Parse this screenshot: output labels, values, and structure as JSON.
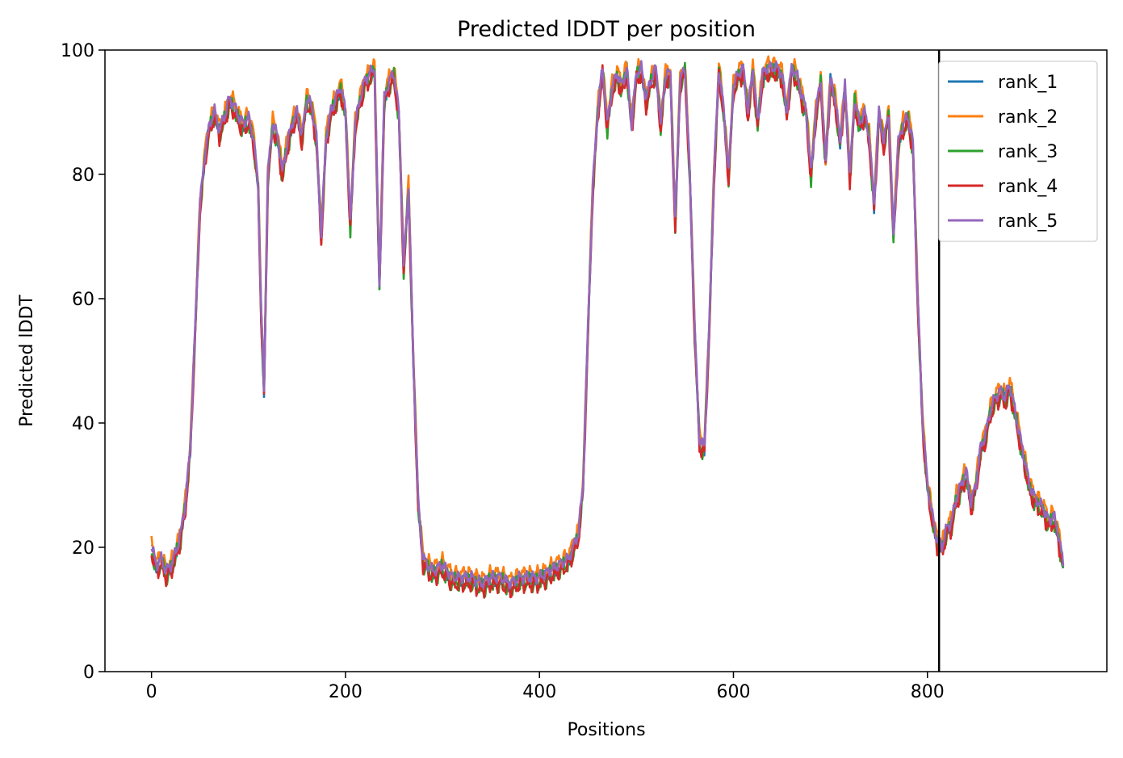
{
  "chart_data": {
    "type": "line",
    "title": "Predicted lDDT per position",
    "xlabel": "Positions",
    "ylabel": "Predicted lDDT",
    "xlim": [
      -48,
      985
    ],
    "ylim": [
      0,
      100
    ],
    "xticks": [
      0,
      200,
      400,
      600,
      800
    ],
    "yticks": [
      0,
      20,
      40,
      60,
      80,
      100
    ],
    "vline_x": 812,
    "grid": false,
    "legend_position": "upper right",
    "base": {
      "x": [
        0,
        5,
        10,
        15,
        20,
        25,
        30,
        35,
        40,
        45,
        50,
        55,
        60,
        65,
        70,
        75,
        80,
        85,
        90,
        95,
        100,
        105,
        110,
        113,
        116,
        120,
        125,
        130,
        135,
        140,
        145,
        150,
        155,
        160,
        165,
        170,
        175,
        180,
        185,
        190,
        195,
        200,
        205,
        210,
        215,
        220,
        225,
        230,
        235,
        240,
        245,
        250,
        255,
        260,
        265,
        270,
        275,
        280,
        290,
        300,
        310,
        320,
        330,
        340,
        350,
        360,
        370,
        380,
        390,
        400,
        410,
        420,
        430,
        440,
        445,
        450,
        455,
        460,
        465,
        470,
        475,
        480,
        485,
        490,
        495,
        500,
        505,
        510,
        515,
        520,
        525,
        530,
        535,
        540,
        545,
        550,
        555,
        560,
        565,
        570,
        575,
        580,
        585,
        590,
        595,
        600,
        605,
        610,
        615,
        620,
        625,
        630,
        635,
        640,
        645,
        650,
        655,
        660,
        665,
        670,
        675,
        680,
        685,
        690,
        695,
        700,
        705,
        710,
        715,
        720,
        725,
        730,
        735,
        740,
        745,
        750,
        755,
        760,
        765,
        770,
        775,
        780,
        785,
        790,
        795,
        800,
        805,
        810,
        815,
        820,
        825,
        830,
        835,
        840,
        845,
        850,
        855,
        860,
        865,
        870,
        875,
        880,
        885,
        890,
        895,
        900,
        905,
        910,
        915,
        920,
        925,
        930,
        935,
        940
      ],
      "y": [
        20,
        17,
        18,
        16,
        17,
        19,
        22,
        27,
        36,
        55,
        75,
        83,
        88,
        90,
        87,
        89,
        92,
        91,
        89,
        88,
        89,
        86,
        78,
        58,
        45,
        80,
        88,
        86,
        80,
        85,
        88,
        90,
        86,
        92,
        91,
        86,
        70,
        86,
        90,
        92,
        94,
        90,
        72,
        88,
        92,
        95,
        96,
        97,
        62,
        92,
        95,
        96,
        90,
        65,
        78,
        50,
        27,
        18,
        16,
        17,
        15,
        15,
        15,
        14,
        15,
        15,
        14,
        15,
        15,
        15,
        16,
        17,
        18,
        22,
        30,
        55,
        78,
        90,
        97,
        88,
        94,
        96,
        94,
        97,
        88,
        96,
        97,
        92,
        95,
        97,
        88,
        96,
        96,
        72,
        95,
        97,
        80,
        55,
        37,
        36,
        55,
        80,
        97,
        90,
        80,
        94,
        96,
        97,
        90,
        97,
        88,
        96,
        97,
        97,
        97,
        96,
        90,
        97,
        96,
        93,
        90,
        80,
        90,
        95,
        82,
        95,
        92,
        85,
        94,
        80,
        92,
        88,
        90,
        86,
        75,
        90,
        85,
        90,
        70,
        85,
        88,
        89,
        85,
        60,
        40,
        30,
        25,
        21,
        20,
        23,
        24,
        28,
        30,
        32,
        27,
        30,
        36,
        38,
        42,
        44,
        45,
        44,
        46,
        42,
        38,
        34,
        30,
        28,
        27,
        26,
        24,
        25,
        22,
        17
      ]
    },
    "series": [
      {
        "name": "rank_1",
        "color": "#1f77b4",
        "offset": 0,
        "amp": 0.8,
        "phase": 0.3
      },
      {
        "name": "rank_2",
        "color": "#ff7f0e",
        "offset": 0.8,
        "amp": 0.9,
        "phase": 1.7
      },
      {
        "name": "rank_3",
        "color": "#2ca02c",
        "offset": -0.6,
        "amp": 1.1,
        "phase": 2.9
      },
      {
        "name": "rank_4",
        "color": "#d62728",
        "offset": -0.9,
        "amp": 1.0,
        "phase": 4.2
      },
      {
        "name": "rank_5",
        "color": "#9467bd",
        "offset": 0.2,
        "amp": 0.7,
        "phase": 5.5
      }
    ]
  }
}
